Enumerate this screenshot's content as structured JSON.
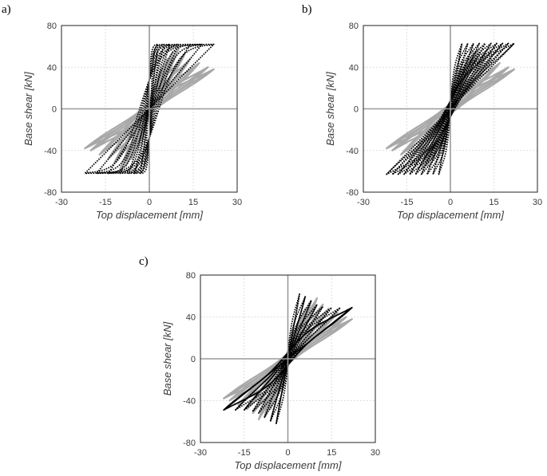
{
  "chart_data": [
    {
      "type": "line",
      "panel_label": "a)",
      "xlabel": "Top displacement [mm]",
      "ylabel": "Base shear [kN]",
      "xlim": [
        -30,
        30
      ],
      "ylim": [
        -80,
        80
      ],
      "xticks": [
        "-30",
        "-15",
        "0",
        "15",
        "30"
      ],
      "yticks": [
        "80",
        "40",
        "0",
        "-40",
        "-80"
      ],
      "grid": true,
      "legend": "none",
      "colors": {
        "experimental": "#a8a8a8",
        "numerical": "#000000"
      },
      "series": [
        {
          "style": "experimental",
          "amplitudes": [
            4,
            6,
            8,
            10,
            12,
            14,
            17,
            20,
            22
          ],
          "peak_force": [
            38,
            48,
            55,
            58,
            52,
            48,
            44,
            40,
            38
          ],
          "pinching": 0.65
        },
        {
          "style": "numerical",
          "amplitudes": [
            3,
            5,
            7,
            10,
            14,
            18,
            22
          ],
          "peak_force": [
            62,
            62,
            62,
            62,
            62,
            62,
            62
          ],
          "pinching": 0.0
        }
      ]
    },
    {
      "type": "line",
      "panel_label": "b)",
      "xlabel": "Top displacement [mm]",
      "ylabel": "Base shear [kN]",
      "xlim": [
        -30,
        30
      ],
      "ylim": [
        -80,
        80
      ],
      "xticks": [
        "-30",
        "-15",
        "0",
        "15",
        "30"
      ],
      "yticks": [
        "80",
        "40",
        "0",
        "-40",
        "-80"
      ],
      "grid": true,
      "legend": "none",
      "colors": {
        "experimental": "#a8a8a8",
        "numerical": "#000000"
      },
      "series": [
        {
          "style": "experimental",
          "amplitudes": [
            4,
            6,
            8,
            10,
            12,
            14,
            17,
            20,
            22
          ],
          "peak_force": [
            38,
            48,
            55,
            58,
            52,
            48,
            44,
            40,
            38
          ],
          "pinching": 0.65
        },
        {
          "style": "numerical",
          "amplitudes": [
            4,
            6,
            8,
            10,
            12,
            14,
            16,
            18,
            20,
            22
          ],
          "peak_force": [
            63,
            63,
            63,
            63,
            63,
            63,
            63,
            63,
            63,
            63
          ],
          "pinching": 0.45
        }
      ]
    },
    {
      "type": "line",
      "panel_label": "c)",
      "xlabel": "Top displacement [mm]",
      "ylabel": "Base shear [kN]",
      "xlim": [
        -30,
        30
      ],
      "ylim": [
        -80,
        80
      ],
      "xticks": [
        "-30",
        "-15",
        "0",
        "15",
        "30"
      ],
      "yticks": [
        "80",
        "40",
        "0",
        "-40",
        "-80"
      ],
      "grid": true,
      "legend": "none",
      "colors": {
        "experimental": "#a8a8a8",
        "numerical": "#000000"
      },
      "series": [
        {
          "style": "experimental",
          "amplitudes": [
            4,
            6,
            8,
            10,
            12,
            14,
            17,
            20,
            22
          ],
          "peak_force": [
            38,
            48,
            55,
            58,
            52,
            48,
            44,
            40,
            38
          ],
          "pinching": 0.65
        },
        {
          "style": "numerical",
          "amplitudes": [
            4,
            6,
            8,
            10,
            12,
            15,
            18,
            22
          ],
          "peak_force": [
            62,
            60,
            56,
            52,
            50,
            49,
            49,
            49
          ],
          "pinching": 0.55
        }
      ]
    }
  ]
}
